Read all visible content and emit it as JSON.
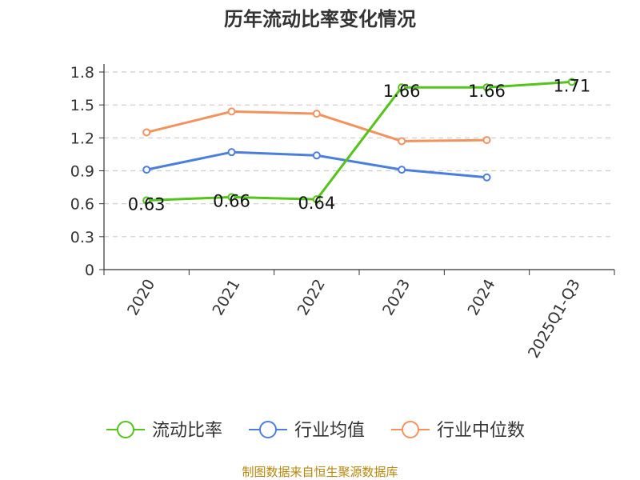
{
  "title": "历年流动比率变化情况",
  "source": "制图数据来自恒生聚源数据库",
  "colors": {
    "current_ratio": "#52c41a",
    "industry_mean": "#4a7fde",
    "industry_median": "#f4925e",
    "grid": "#cccccc",
    "axis": "#333333"
  },
  "chart_data": {
    "type": "line",
    "title": "历年流动比率变化情况",
    "categories": [
      "2020",
      "2021",
      "2022",
      "2023",
      "2024",
      "2025Q1-Q3"
    ],
    "ylim": [
      0,
      1.8
    ],
    "yticks": [
      "0",
      "0.3",
      "0.6",
      "0.9",
      "1.2",
      "1.5",
      "1.8"
    ],
    "grid": true,
    "legend_position": "bottom",
    "series": [
      {
        "key": "current_ratio",
        "name": "流动比率",
        "values": [
          0.63,
          0.66,
          0.64,
          1.66,
          1.66,
          1.71
        ],
        "labels": [
          "0.63",
          "0.66",
          "0.64",
          "1.66",
          "1.66",
          "1.71"
        ]
      },
      {
        "key": "industry_mean",
        "name": "行业均值",
        "values": [
          0.91,
          1.07,
          1.04,
          0.91,
          0.84,
          null
        ]
      },
      {
        "key": "industry_median",
        "name": "行业中位数",
        "values": [
          1.25,
          1.44,
          1.42,
          1.17,
          1.18,
          null
        ]
      }
    ]
  }
}
